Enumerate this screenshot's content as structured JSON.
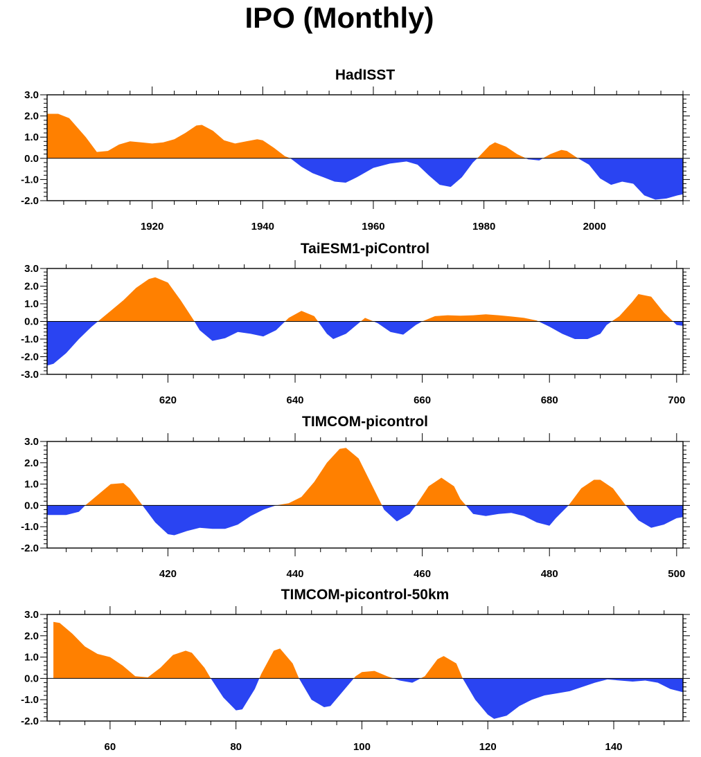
{
  "title": "IPO (Monthly)",
  "colors": {
    "positive": "#ff8000",
    "negative": "#2a44f2",
    "axis": "#000000"
  },
  "chart_data": [
    {
      "type": "area",
      "title": "HadISST",
      "xlim": [
        1901,
        2016
      ],
      "ylim": [
        -2.0,
        3.0
      ],
      "xticks": [
        1920,
        1940,
        1960,
        1980,
        2000
      ],
      "yticks": [
        "3.0",
        "2.0",
        "1.0",
        "0.0",
        "-1.0",
        "-2.0"
      ],
      "x": [
        1901,
        1903,
        1905,
        1908,
        1910,
        1912,
        1914,
        1916,
        1918,
        1920,
        1922,
        1924,
        1926,
        1928,
        1929,
        1931,
        1933,
        1935,
        1937,
        1939,
        1940,
        1942,
        1944,
        1945,
        1947,
        1949,
        1951,
        1953,
        1955,
        1957,
        1960,
        1963,
        1966,
        1968,
        1970,
        1972,
        1974,
        1976,
        1978,
        1979,
        1981,
        1982,
        1984,
        1986,
        1988,
        1990,
        1992,
        1994,
        1995,
        1997,
        1999,
        2001,
        2003,
        2005,
        2007,
        2009,
        2011,
        2013,
        2015,
        2016
      ],
      "values": [
        2.1,
        2.1,
        1.9,
        1.0,
        0.3,
        0.35,
        0.65,
        0.8,
        0.75,
        0.7,
        0.75,
        0.9,
        1.2,
        1.55,
        1.58,
        1.3,
        0.85,
        0.7,
        0.8,
        0.9,
        0.85,
        0.5,
        0.1,
        0.0,
        -0.4,
        -0.7,
        -0.9,
        -1.1,
        -1.15,
        -0.9,
        -0.45,
        -0.25,
        -0.15,
        -0.3,
        -0.8,
        -1.25,
        -1.35,
        -0.9,
        -0.2,
        0.05,
        0.6,
        0.75,
        0.55,
        0.2,
        -0.05,
        -0.1,
        0.2,
        0.4,
        0.35,
        0.0,
        -0.3,
        -0.95,
        -1.25,
        -1.1,
        -1.2,
        -1.75,
        -1.95,
        -1.9,
        -1.75,
        -1.7
      ]
    },
    {
      "type": "area",
      "title": "TaiESM1-piControl",
      "xlim": [
        601,
        701
      ],
      "ylim": [
        -3.0,
        3.0
      ],
      "xticks": [
        620,
        640,
        660,
        680,
        700
      ],
      "yticks": [
        "3.0",
        "2.0",
        "1.0",
        "0.0",
        "-1.0",
        "-2.0",
        "-3.0"
      ],
      "x": [
        601,
        602,
        604,
        606,
        608,
        609,
        611,
        613,
        615,
        617,
        618,
        620,
        622,
        624,
        625,
        627,
        629,
        631,
        633,
        635,
        637,
        639,
        641,
        643,
        645,
        646,
        648,
        650,
        651,
        653,
        655,
        657,
        659,
        660,
        662,
        664,
        666,
        668,
        670,
        672,
        674,
        676,
        678,
        680,
        682,
        684,
        686,
        688,
        689,
        691,
        693,
        694,
        696,
        698,
        700,
        701
      ],
      "values": [
        -2.5,
        -2.4,
        -1.8,
        -1.0,
        -0.3,
        0.0,
        0.6,
        1.2,
        1.9,
        2.4,
        2.5,
        2.2,
        1.2,
        0.1,
        -0.5,
        -1.1,
        -0.95,
        -0.6,
        -0.7,
        -0.85,
        -0.5,
        0.2,
        0.6,
        0.3,
        -0.7,
        -1.0,
        -0.7,
        -0.1,
        0.2,
        -0.1,
        -0.6,
        -0.75,
        -0.2,
        0.0,
        0.3,
        0.35,
        0.32,
        0.35,
        0.4,
        0.35,
        0.28,
        0.2,
        0.05,
        -0.3,
        -0.7,
        -1.0,
        -1.0,
        -0.7,
        -0.2,
        0.3,
        1.1,
        1.55,
        1.4,
        0.5,
        -0.2,
        -0.25
      ]
    },
    {
      "type": "area",
      "title": "TIMCOM-picontrol",
      "xlim": [
        401,
        501
      ],
      "ylim": [
        -2.0,
        3.0
      ],
      "xticks": [
        420,
        440,
        460,
        480,
        500
      ],
      "yticks": [
        "3.0",
        "2.0",
        "1.0",
        "0.0",
        "-1.0",
        "-2.0"
      ],
      "x": [
        401,
        402,
        404,
        406,
        407,
        409,
        411,
        413,
        414,
        416,
        418,
        420,
        421,
        423,
        425,
        427,
        429,
        431,
        433,
        435,
        437,
        439,
        441,
        443,
        445,
        447,
        448,
        450,
        452,
        454,
        456,
        458,
        459,
        461,
        463,
        465,
        466,
        468,
        470,
        472,
        474,
        476,
        478,
        480,
        481,
        483,
        485,
        487,
        488,
        490,
        492,
        494,
        496,
        498,
        500,
        501
      ],
      "values": [
        -0.45,
        -0.45,
        -0.45,
        -0.3,
        0.0,
        0.5,
        1.0,
        1.05,
        0.8,
        0.0,
        -0.8,
        -1.35,
        -1.4,
        -1.2,
        -1.05,
        -1.1,
        -1.1,
        -0.9,
        -0.5,
        -0.2,
        0.0,
        0.1,
        0.4,
        1.1,
        2.0,
        2.65,
        2.7,
        2.2,
        1.0,
        -0.2,
        -0.75,
        -0.4,
        0.0,
        0.9,
        1.3,
        0.9,
        0.3,
        -0.4,
        -0.5,
        -0.4,
        -0.35,
        -0.5,
        -0.8,
        -0.95,
        -0.6,
        0.0,
        0.8,
        1.2,
        1.2,
        0.8,
        0.0,
        -0.7,
        -1.05,
        -0.9,
        -0.6,
        -0.55
      ]
    },
    {
      "type": "area",
      "title": "TIMCOM-picontrol-50km",
      "xlim": [
        50,
        151
      ],
      "ylim": [
        -2.0,
        3.0
      ],
      "xticks": [
        60,
        80,
        100,
        120,
        140
      ],
      "yticks": [
        "3.0",
        "2.0",
        "1.0",
        "0.0",
        "-1.0",
        "-2.0"
      ],
      "x": [
        51,
        52,
        54,
        56,
        58,
        60,
        62,
        64,
        66,
        68,
        70,
        72,
        73,
        75,
        76,
        78,
        80,
        81,
        83,
        84,
        86,
        87,
        89,
        90,
        92,
        94,
        95,
        97,
        99,
        100,
        102,
        104,
        106,
        108,
        110,
        112,
        113,
        115,
        116,
        118,
        120,
        121,
        123,
        125,
        127,
        129,
        131,
        133,
        135,
        137,
        139,
        141,
        143,
        145,
        147,
        149,
        151
      ],
      "values": [
        2.65,
        2.6,
        2.1,
        1.5,
        1.15,
        1.0,
        0.6,
        0.1,
        0.05,
        0.5,
        1.1,
        1.3,
        1.2,
        0.5,
        0.0,
        -0.9,
        -1.5,
        -1.45,
        -0.5,
        0.2,
        1.3,
        1.4,
        0.7,
        0.0,
        -1.0,
        -1.35,
        -1.3,
        -0.6,
        0.1,
        0.3,
        0.35,
        0.1,
        -0.1,
        -0.2,
        0.1,
        0.9,
        1.05,
        0.7,
        0.0,
        -1.0,
        -1.7,
        -1.9,
        -1.75,
        -1.3,
        -1.0,
        -0.8,
        -0.7,
        -0.6,
        -0.4,
        -0.2,
        -0.05,
        -0.1,
        -0.15,
        -0.1,
        -0.2,
        -0.5,
        -0.65
      ]
    }
  ]
}
